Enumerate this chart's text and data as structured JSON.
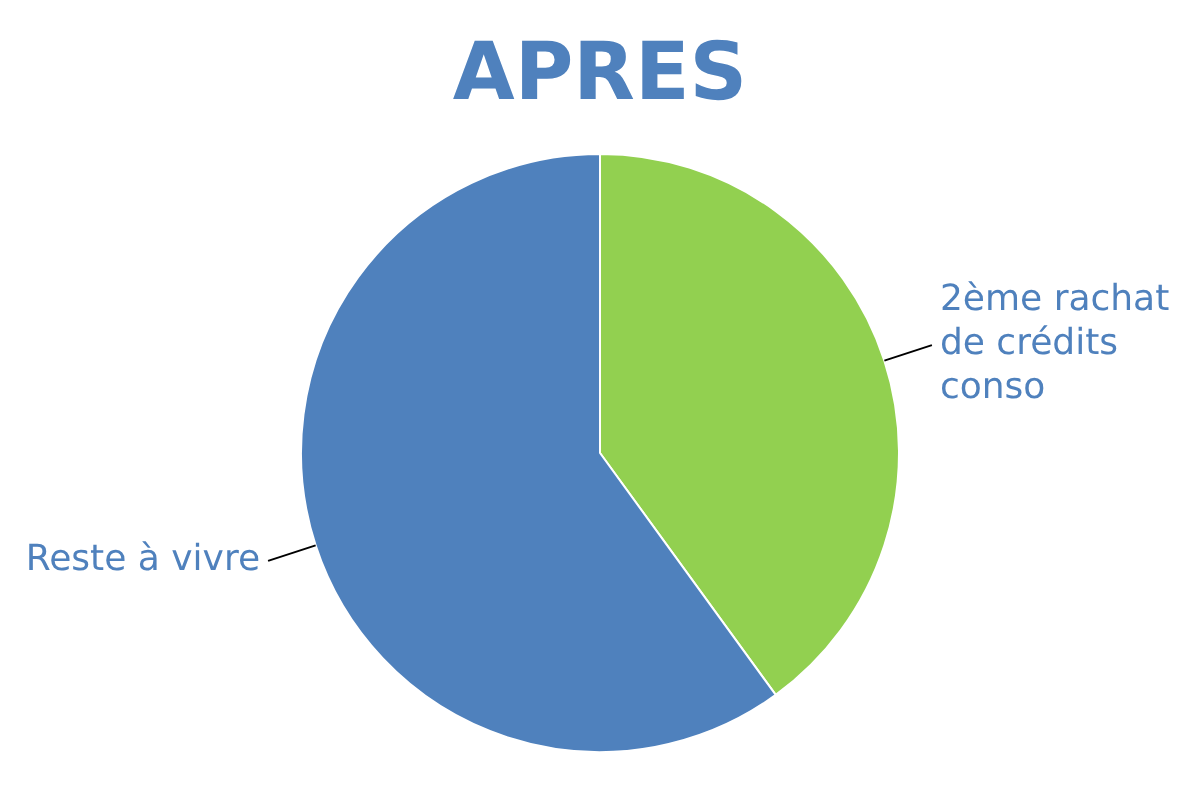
{
  "chart_data": {
    "type": "pie",
    "title": "APRES",
    "categories": [
      "2ème rachat de crédits conso",
      "Reste à vivre"
    ],
    "values": [
      40,
      60
    ],
    "colors": [
      "#92d050",
      "#4f81bd"
    ],
    "legend": false
  }
}
